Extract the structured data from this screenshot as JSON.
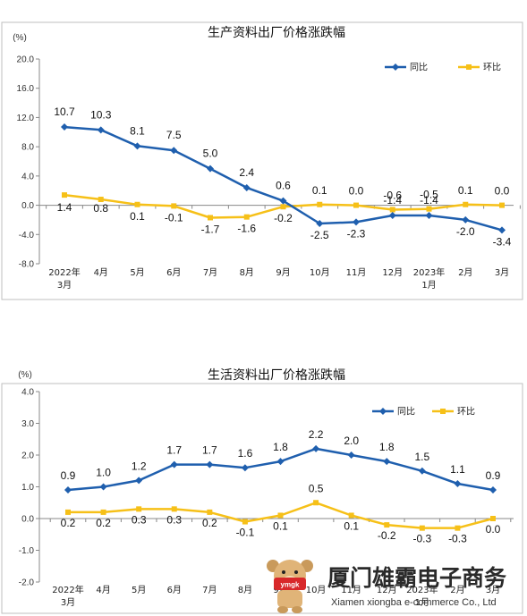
{
  "chart_data": [
    {
      "type": "line",
      "title": "生产资料出厂价格涨跌幅",
      "unit": "(%)",
      "y_ticks": [
        "20.0",
        "16.0",
        "12.0",
        "8.0",
        "4.0",
        "0.0",
        "-4.0",
        "-8.0"
      ],
      "ylim": [
        -8,
        20
      ],
      "grid": false,
      "legend_position": "top-right",
      "categories": [
        {
          "line1": "2022年",
          "line2": "3月"
        },
        {
          "line1": "4月",
          "line2": ""
        },
        {
          "line1": "5月",
          "line2": ""
        },
        {
          "line1": "6月",
          "line2": ""
        },
        {
          "line1": "7月",
          "line2": ""
        },
        {
          "line1": "8月",
          "line2": ""
        },
        {
          "line1": "9月",
          "line2": ""
        },
        {
          "line1": "10月",
          "line2": ""
        },
        {
          "line1": "11月",
          "line2": ""
        },
        {
          "line1": "12月",
          "line2": ""
        },
        {
          "line1": "2023年",
          "line2": "1月"
        },
        {
          "line1": "2月",
          "line2": ""
        },
        {
          "line1": "3月",
          "line2": ""
        }
      ],
      "series": [
        {
          "name": "同比",
          "color": "#1f5fae",
          "marker": "diamond",
          "values": [
            10.7,
            10.3,
            8.1,
            7.5,
            5.0,
            2.4,
            0.6,
            -2.5,
            -2.3,
            -1.4,
            -1.4,
            -2.0,
            -3.4
          ],
          "labels": [
            "10.7",
            "10.3",
            "8.1",
            "7.5",
            "5.0",
            "2.4",
            "0.6",
            "-2.5",
            "-2.3",
            "-1.4",
            "-1.4",
            "-2.0",
            "-3.4"
          ]
        },
        {
          "name": "环比",
          "color": "#f6c018",
          "marker": "square",
          "values": [
            1.4,
            0.8,
            0.1,
            -0.1,
            -1.7,
            -1.6,
            -0.2,
            0.1,
            0.0,
            -0.6,
            -0.5,
            0.1,
            0.0
          ],
          "labels": [
            "1.4",
            "0.8",
            "0.1",
            "-0.1",
            "-1.7",
            "-1.6",
            "-0.2",
            "0.1",
            "0.0",
            "-0.6",
            "-0.5",
            "0.1",
            "0.0"
          ]
        }
      ]
    },
    {
      "type": "line",
      "title": "生活资料出厂价格涨跌幅",
      "unit": "(%)",
      "y_ticks": [
        "4.0",
        "3.0",
        "2.0",
        "1.0",
        "0.0",
        "-1.0",
        "-2.0"
      ],
      "ylim": [
        -2,
        4
      ],
      "grid": false,
      "legend_position": "top-right",
      "categories": [
        {
          "line1": "2022年",
          "line2": "3月"
        },
        {
          "line1": "4月",
          "line2": ""
        },
        {
          "line1": "5月",
          "line2": ""
        },
        {
          "line1": "6月",
          "line2": ""
        },
        {
          "line1": "7月",
          "line2": ""
        },
        {
          "line1": "8月",
          "line2": ""
        },
        {
          "line1": "9月",
          "line2": ""
        },
        {
          "line1": "10月",
          "line2": ""
        },
        {
          "line1": "11月",
          "line2": ""
        },
        {
          "line1": "12月",
          "line2": ""
        },
        {
          "line1": "2023年",
          "line2": "1月"
        },
        {
          "line1": "2月",
          "line2": ""
        },
        {
          "line1": "3月",
          "line2": ""
        }
      ],
      "series": [
        {
          "name": "同比",
          "color": "#1f5fae",
          "marker": "diamond",
          "values": [
            0.9,
            1.0,
            1.2,
            1.7,
            1.7,
            1.6,
            1.8,
            2.2,
            2.0,
            1.8,
            1.5,
            1.1,
            0.9
          ],
          "labels": [
            "0.9",
            "1.0",
            "1.2",
            "1.7",
            "1.7",
            "1.6",
            "1.8",
            "2.2",
            "2.0",
            "1.8",
            "1.5",
            "1.1",
            "0.9"
          ]
        },
        {
          "name": "环比",
          "color": "#f6c018",
          "marker": "square",
          "values": [
            0.2,
            0.2,
            0.3,
            0.3,
            0.2,
            -0.1,
            0.1,
            0.5,
            0.1,
            -0.2,
            -0.3,
            -0.3,
            0.0
          ],
          "labels": [
            "0.2",
            "0.2",
            "0.3",
            "0.3",
            "0.2",
            "-0.1",
            "0.1",
            "0.5",
            "0.1",
            "-0.2",
            "-0.3",
            "-0.3",
            "0.0"
          ]
        }
      ]
    }
  ],
  "watermark": {
    "company_cn": "厦门雄霸电子商务",
    "company_en": "Xiamen xiongba e-commerce Co., Ltd",
    "mascot_text": "ymgk"
  }
}
